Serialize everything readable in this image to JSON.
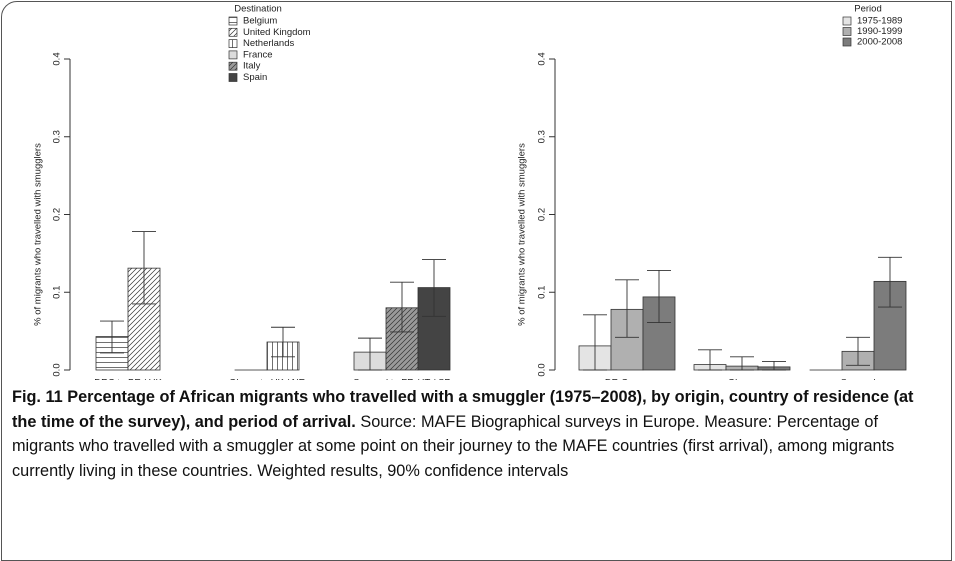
{
  "chart_data": [
    {
      "type": "bar",
      "y_label": "% of migrants who travelled with smugglers",
      "legend_title": "Destination",
      "categories": [
        "DRC to BE / UK",
        "Ghana to UK / NE",
        "Senegal to FR / IT / SP"
      ],
      "ylim": [
        0,
        0.4
      ],
      "yticks": [
        {
          "value": 0,
          "label": "0.0"
        },
        0.1,
        0.2,
        0.3,
        0.4
      ],
      "series": [
        {
          "name": "Belgium",
          "color": "#ffffff",
          "pattern": "horizontal",
          "values": [
            0.043,
            null,
            null
          ],
          "ci_low": [
            0.022,
            null,
            null
          ],
          "ci_high": [
            0.063,
            null,
            null
          ]
        },
        {
          "name": "United Kingdom",
          "color": "#ffffff",
          "pattern": "diagonal",
          "values": [
            0.131,
            0,
            null
          ],
          "ci_low": [
            0.085,
            null,
            null
          ],
          "ci_high": [
            0.178,
            null,
            null
          ]
        },
        {
          "name": "Netherlands",
          "color": "#ffffff",
          "pattern": "vertical",
          "values": [
            null,
            0.036,
            null
          ],
          "ci_low": [
            null,
            0.017,
            null
          ],
          "ci_high": [
            null,
            0.055,
            null
          ]
        },
        {
          "name": "France",
          "color": "#dcdcdc",
          "values": [
            null,
            null,
            0.023
          ],
          "ci_low": [
            null,
            null,
            0
          ],
          "ci_high": [
            null,
            null,
            0.041
          ]
        },
        {
          "name": "Italy",
          "color": "#9a9a9a",
          "pattern": "diagonal",
          "values": [
            null,
            null,
            0.08
          ],
          "ci_low": [
            null,
            null,
            0.049
          ],
          "ci_high": [
            null,
            null,
            0.113
          ]
        },
        {
          "name": "Spain",
          "color": "#444444",
          "values": [
            null,
            null,
            0.106
          ],
          "ci_low": [
            null,
            null,
            0.069
          ],
          "ci_high": [
            null,
            null,
            0.142
          ]
        }
      ]
    },
    {
      "type": "bar",
      "y_label": "% of migrants who travelled with smugglers",
      "legend_title": "Period",
      "categories": [
        "DR Congo",
        "Ghana",
        "Senegal"
      ],
      "ylim": [
        0,
        0.4
      ],
      "yticks": [
        {
          "value": 0,
          "label": "0.0"
        },
        0.1,
        0.2,
        0.3,
        0.4
      ],
      "series": [
        {
          "name": "1975-1989",
          "color": "#e4e4e4",
          "values": [
            0.031,
            0.007,
            0
          ],
          "ci_low": [
            0,
            0,
            null
          ],
          "ci_high": [
            0.071,
            0.026,
            null
          ]
        },
        {
          "name": "1990-1999",
          "color": "#b0b0b0",
          "values": [
            0.078,
            0.005,
            0.024
          ],
          "ci_low": [
            0.042,
            0,
            0.006
          ],
          "ci_high": [
            0.116,
            0.017,
            0.042
          ]
        },
        {
          "name": "2000-2008",
          "color": "#7c7c7c",
          "values": [
            0.094,
            0.004,
            0.114
          ],
          "ci_low": [
            0.061,
            0,
            0.081
          ],
          "ci_high": [
            0.128,
            0.011,
            0.145
          ]
        }
      ]
    }
  ],
  "caption": {
    "label": "Fig. 11",
    "title": "Percentage of African migrants who travelled with a smuggler (1975–2008), by origin, country of residence (at the time of the survey), and period of arrival.",
    "text": "Source: MAFE Biographical surveys in Europe. Measure: Percentage of migrants who travelled with a smuggler at some point on their journey to the MAFE countries (first arrival), among migrants currently living in these countries. Weighted results, 90% confidence intervals"
  }
}
